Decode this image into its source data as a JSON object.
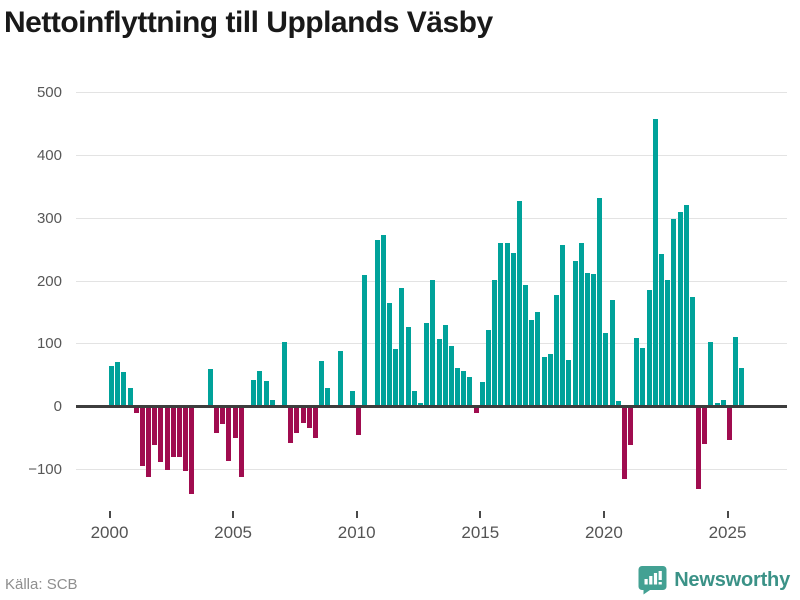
{
  "title": "Nettoinflyttning till Upplands Väsby",
  "source": "Källa: SCB",
  "logo": {
    "text": "Newsworthy"
  },
  "chart_data": {
    "type": "bar",
    "title": "Nettoinflyttning till Upplands Väsby",
    "xlabel": "",
    "ylabel": "",
    "ylim": [
      -150,
      500
    ],
    "grid": true,
    "legend": "none",
    "yticks": [
      500,
      400,
      300,
      200,
      100,
      0,
      -100
    ],
    "ytick_labels": [
      "500",
      "400",
      "300",
      "200",
      "100",
      "0",
      "−100"
    ],
    "xtick_years": [
      2000,
      2005,
      2010,
      2015,
      2020,
      2025
    ],
    "xtick_labels": [
      "2000",
      "2005",
      "2010",
      "2015",
      "2020",
      "2025"
    ],
    "colors": {
      "positive": "#00a29a",
      "negative": "#a00c4f"
    },
    "frequency": "quarterly",
    "series": [
      {
        "year": 2000,
        "values": [
          63,
          69,
          53,
          27
        ]
      },
      {
        "year": 2001,
        "values": [
          -7,
          -92,
          -110,
          -58
        ]
      },
      {
        "year": 2002,
        "values": [
          -85,
          -98,
          -77,
          -78
        ]
      },
      {
        "year": 2003,
        "values": [
          -100,
          -137,
          0,
          0
        ]
      },
      {
        "year": 2004,
        "values": [
          57,
          -39,
          -25,
          -84
        ]
      },
      {
        "year": 2005,
        "values": [
          -47,
          -110,
          0,
          40
        ]
      },
      {
        "year": 2006,
        "values": [
          54,
          38,
          8,
          0
        ]
      },
      {
        "year": 2007,
        "values": [
          100,
          -56,
          -40,
          -24
        ]
      },
      {
        "year": 2008,
        "values": [
          -32,
          -48,
          71,
          28
        ]
      },
      {
        "year": 2009,
        "values": [
          0,
          86,
          0,
          23
        ]
      },
      {
        "year": 2010,
        "values": [
          -43,
          207,
          0,
          263
        ]
      },
      {
        "year": 2011,
        "values": [
          272,
          163,
          89,
          186
        ]
      },
      {
        "year": 2012,
        "values": [
          125,
          22,
          4,
          131
        ]
      },
      {
        "year": 2013,
        "values": [
          200,
          106,
          128,
          95
        ]
      },
      {
        "year": 2014,
        "values": [
          60,
          54,
          45,
          -8
        ]
      },
      {
        "year": 2015,
        "values": [
          37,
          120,
          199,
          259
        ]
      },
      {
        "year": 2016,
        "values": [
          259,
          243,
          326,
          191
        ]
      },
      {
        "year": 2017,
        "values": [
          136,
          149,
          77,
          82
        ]
      },
      {
        "year": 2018,
        "values": [
          176,
          255,
          72,
          230
        ]
      },
      {
        "year": 2019,
        "values": [
          258,
          210,
          209,
          330
        ]
      },
      {
        "year": 2020,
        "values": [
          115,
          167,
          6,
          -113
        ]
      },
      {
        "year": 2021,
        "values": [
          -58,
          107,
          91,
          183
        ]
      },
      {
        "year": 2022,
        "values": [
          456,
          241,
          199,
          297
        ]
      },
      {
        "year": 2023,
        "values": [
          308,
          319,
          173,
          -128
        ]
      },
      {
        "year": 2024,
        "values": [
          -57,
          101,
          4,
          8
        ]
      },
      {
        "year": 2025,
        "values": [
          -50,
          108,
          60
        ]
      }
    ]
  }
}
